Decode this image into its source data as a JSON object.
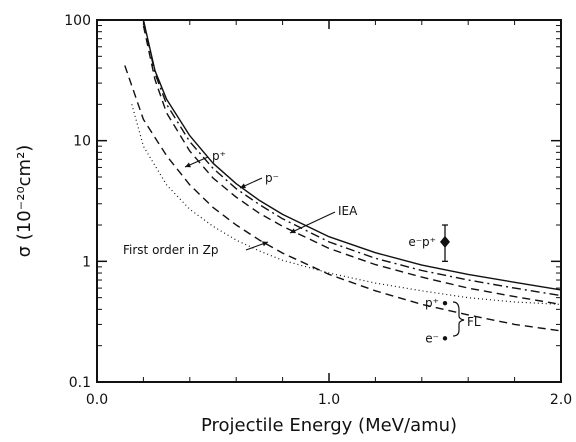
{
  "chart_data": {
    "type": "line",
    "xlabel": "Projectile Energy (MeV/amu)",
    "ylabel": "σ (10⁻²⁰cm²)",
    "xlim": [
      0.0,
      2.0
    ],
    "ylim": [
      0.1,
      100
    ],
    "yscale": "log",
    "grid": false,
    "x_ticks": [
      {
        "value": 0.0,
        "label": "0.0"
      },
      {
        "value": 1.0,
        "label": "1.0"
      },
      {
        "value": 2.0,
        "label": "2.0"
      }
    ],
    "y_ticks": [
      {
        "value": 0.1,
        "label": "0.1"
      },
      {
        "value": 1,
        "label": "1"
      },
      {
        "value": 10,
        "label": "10"
      },
      {
        "value": 100,
        "label": "100"
      }
    ],
    "series": [
      {
        "name": "p⁺",
        "style": "solid",
        "x": [
          0.2,
          0.25,
          0.3,
          0.4,
          0.5,
          0.6,
          0.7,
          0.8,
          1.0,
          1.2,
          1.4,
          1.6,
          1.8,
          2.0
        ],
        "y": [
          100,
          38,
          22,
          11,
          6.5,
          4.4,
          3.2,
          2.45,
          1.6,
          1.18,
          0.93,
          0.78,
          0.67,
          0.58
        ]
      },
      {
        "name": "p⁻",
        "style": "dashdot",
        "x": [
          0.2,
          0.25,
          0.3,
          0.4,
          0.5,
          0.6,
          0.7,
          0.8,
          1.0,
          1.2,
          1.4,
          1.6,
          1.8,
          2.0
        ],
        "y": [
          100,
          36,
          20,
          9.8,
          5.9,
          4.0,
          2.95,
          2.25,
          1.45,
          1.06,
          0.84,
          0.7,
          0.6,
          0.52
        ]
      },
      {
        "name": "IEA",
        "style": "dashed",
        "x": [
          0.2,
          0.25,
          0.3,
          0.4,
          0.5,
          0.6,
          0.7,
          0.8,
          1.0,
          1.2,
          1.4,
          1.6,
          1.8,
          2.0
        ],
        "y": [
          90,
          32,
          17,
          8.2,
          4.9,
          3.4,
          2.5,
          1.95,
          1.28,
          0.94,
          0.74,
          0.6,
          0.51,
          0.44
        ]
      },
      {
        "name": "FL",
        "style": "dashed",
        "x": [
          0.12,
          0.2,
          0.3,
          0.4,
          0.5,
          0.6,
          0.7,
          0.8,
          1.0,
          1.2,
          1.4,
          1.6,
          1.8,
          2.0
        ],
        "y": [
          42,
          15,
          7.5,
          4.3,
          2.8,
          2.0,
          1.5,
          1.17,
          0.78,
          0.57,
          0.44,
          0.36,
          0.3,
          0.265
        ]
      },
      {
        "name": "First order in Zp",
        "style": "dotted",
        "x": [
          0.15,
          0.2,
          0.3,
          0.4,
          0.5,
          0.6,
          0.7,
          0.8,
          1.0,
          1.2,
          1.4,
          1.6,
          1.8,
          2.0
        ],
        "y": [
          20,
          9.0,
          4.3,
          2.7,
          1.95,
          1.5,
          1.22,
          1.02,
          0.8,
          0.66,
          0.57,
          0.5,
          0.46,
          0.44
        ]
      }
    ],
    "points": [
      {
        "label": "e⁻p⁺",
        "x": 1.5,
        "y": 1.45,
        "yerr_low": 1.0,
        "yerr_high": 2.0,
        "marker": "diamond"
      },
      {
        "label": "p⁺",
        "x": 1.5,
        "y": 0.45,
        "marker": "dot"
      },
      {
        "label": "e⁻",
        "x": 1.5,
        "y": 0.23,
        "marker": "dot"
      }
    ],
    "annotations": [
      {
        "text": "p⁺"
      },
      {
        "text": "p⁻"
      },
      {
        "text": "IEA"
      },
      {
        "text": "First order in Zp"
      },
      {
        "text": "FL"
      }
    ]
  }
}
